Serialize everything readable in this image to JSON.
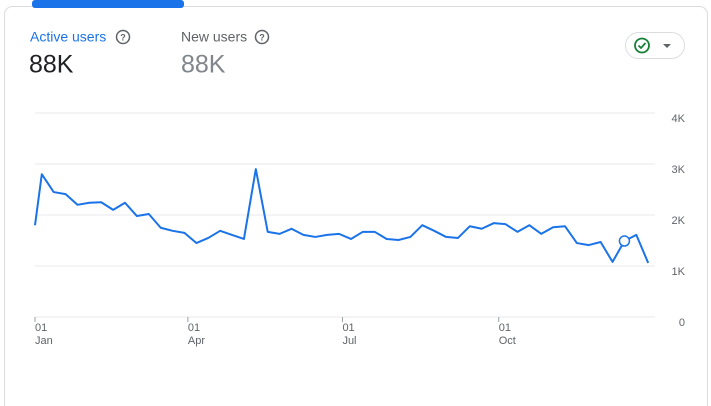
{
  "metrics": [
    {
      "label": "Active users",
      "value": "88K"
    },
    {
      "label": "New users",
      "value": "88K"
    }
  ],
  "chart_data": {
    "type": "line",
    "x": [
      0,
      4,
      11,
      18,
      25,
      32,
      39,
      46,
      53,
      60,
      67,
      74,
      81,
      88,
      95,
      102,
      109,
      116,
      123,
      130,
      137,
      144,
      151,
      158,
      165,
      172,
      179,
      186,
      193,
      200,
      207,
      214,
      221,
      228,
      235,
      242,
      249,
      256,
      263,
      270,
      277,
      284,
      291,
      298,
      305,
      312,
      319,
      326,
      333,
      340,
      347,
      354,
      361
    ],
    "series": [
      {
        "name": "Active users",
        "color": "#1a73e8",
        "values": [
          1800,
          2800,
          2450,
          2410,
          2200,
          2240,
          2250,
          2100,
          2240,
          1980,
          2020,
          1750,
          1690,
          1650,
          1450,
          1550,
          1690,
          1610,
          1530,
          2900,
          1670,
          1630,
          1730,
          1610,
          1570,
          1610,
          1630,
          1530,
          1670,
          1670,
          1530,
          1510,
          1570,
          1800,
          1690,
          1570,
          1550,
          1780,
          1730,
          1840,
          1820,
          1670,
          1800,
          1630,
          1760,
          1780,
          1450,
          1410,
          1470,
          1080,
          1490,
          1610,
          1060
        ]
      }
    ],
    "marker_index": 50,
    "xlim": [
      0,
      365
    ],
    "xticks": [
      {
        "value": 0,
        "label": "01",
        "month": "Jan"
      },
      {
        "value": 90,
        "label": "01",
        "month": "Apr"
      },
      {
        "value": 181,
        "label": "01",
        "month": "Jul"
      },
      {
        "value": 273,
        "label": "01",
        "month": "Oct"
      }
    ],
    "ylim": [
      0,
      4000
    ],
    "yticks": [
      0,
      {
        "value": 1000,
        "label": "1K"
      },
      {
        "value": 2000,
        "label": "2K"
      },
      {
        "value": 3000,
        "label": "3K"
      },
      {
        "value": 4000,
        "label": "4K"
      }
    ],
    "grid": true
  }
}
